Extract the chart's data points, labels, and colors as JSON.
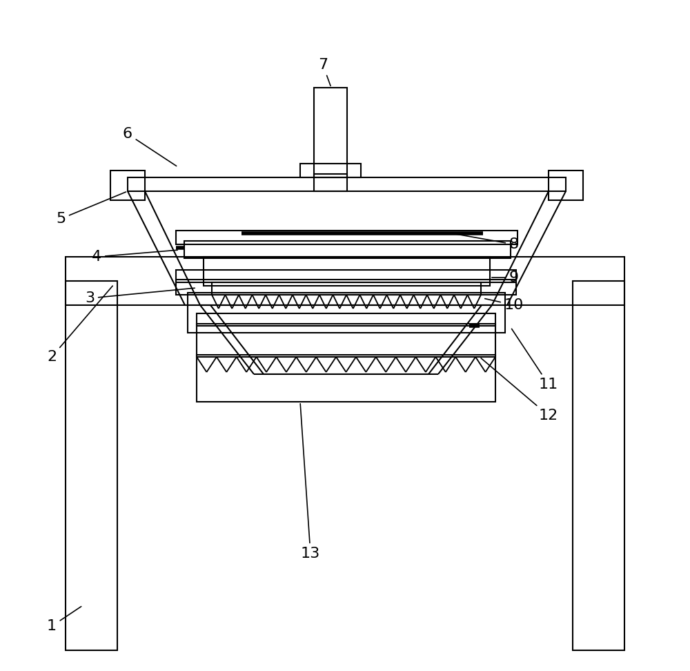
{
  "background_color": "#ffffff",
  "line_color": "#000000",
  "lw": 1.5,
  "lw_thick": 4.0,
  "fig_width": 10.0,
  "fig_height": 9.72,
  "label_fontsize": 16
}
